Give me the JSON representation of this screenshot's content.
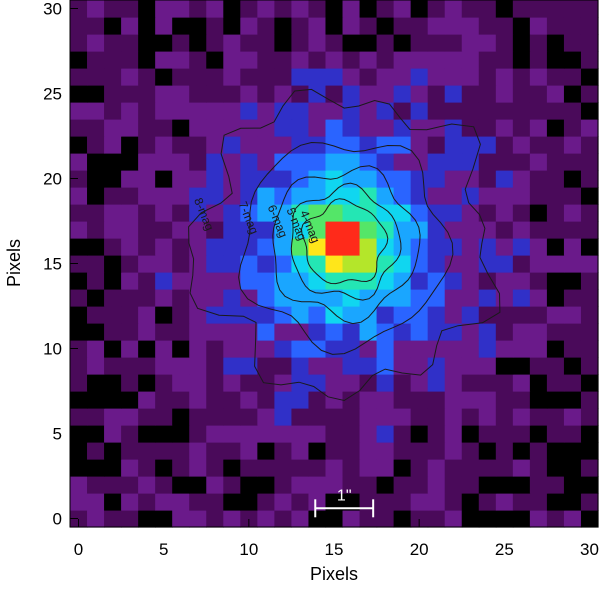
{
  "chart_data": {
    "type": "heatmap",
    "title": "",
    "xlabel": "Pixels",
    "ylabel": "Pixels",
    "xlim": [
      -0.5,
      30.5
    ],
    "ylim": [
      -0.5,
      30.5
    ],
    "x_ticks": [
      "0",
      "5",
      "10",
      "15",
      "20",
      "25",
      "30"
    ],
    "y_ticks": [
      "0",
      "5",
      "10",
      "15",
      "20",
      "25",
      "30"
    ],
    "grid_size": [
      31,
      31
    ],
    "source_center": {
      "x": 15.6,
      "y": 16.2
    },
    "colormap": [
      "#000000",
      "#4a0a5a",
      "#6a1a8a",
      "#3030c8",
      "#2a64ff",
      "#1aa6ff",
      "#10d6f0",
      "#24e6b4",
      "#54e668",
      "#b4e62a",
      "#ffe61a",
      "#ff8c14",
      "#ff2a1a"
    ],
    "contours": [
      {
        "label": "4-mag",
        "level": 4,
        "radius_px": 2.4
      },
      {
        "label": "5-mag",
        "level": 5,
        "radius_px": 3.2
      },
      {
        "label": "6-mag",
        "level": 6,
        "radius_px": 4.3
      },
      {
        "label": "7-mag",
        "level": 7,
        "radius_px": 6.0
      },
      {
        "label": "8-mag",
        "level": 8,
        "radius_px": 8.6
      }
    ],
    "scale_bar": {
      "label": "1\"",
      "x_from": 13.9,
      "x_to": 17.3,
      "y": 0.6
    }
  }
}
